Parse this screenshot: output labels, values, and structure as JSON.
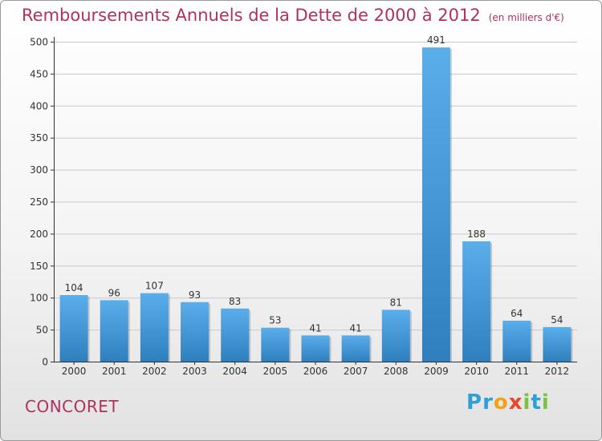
{
  "header": {
    "title": "Remboursements Annuels de la Dette de 2000 à 2012",
    "unit": "(en milliers d'€)"
  },
  "footer": {
    "town": "CONCORET",
    "brand": "Proxiti",
    "brand_letters": [
      {
        "ch": "P",
        "color": "#2f9fd8"
      },
      {
        "ch": "r",
        "color": "#2f9fd8"
      },
      {
        "ch": "o",
        "color": "#f2a21a"
      },
      {
        "ch": "x",
        "color": "#e8472b"
      },
      {
        "ch": "i",
        "color": "#7cc242"
      },
      {
        "ch": "t",
        "color": "#2f9fd8"
      },
      {
        "ch": "i",
        "color": "#7cc242"
      }
    ]
  },
  "colors": {
    "bar_top": "#5aaeea",
    "bar_bottom": "#2f7fbf",
    "axis": "#333333",
    "grid": "#c9c9c9",
    "title": "#b1305f"
  },
  "chart_data": {
    "type": "bar",
    "categories": [
      "2000",
      "2001",
      "2002",
      "2003",
      "2004",
      "2005",
      "2006",
      "2007",
      "2008",
      "2009",
      "2010",
      "2011",
      "2012"
    ],
    "values": [
      104,
      96,
      107,
      93,
      83,
      53,
      41,
      41,
      81,
      491,
      188,
      64,
      54
    ],
    "ylim": [
      0,
      500
    ],
    "yticks": [
      0,
      50,
      100,
      150,
      200,
      250,
      300,
      350,
      400,
      450,
      500
    ],
    "grid": true,
    "xlabel": "",
    "ylabel": ""
  }
}
